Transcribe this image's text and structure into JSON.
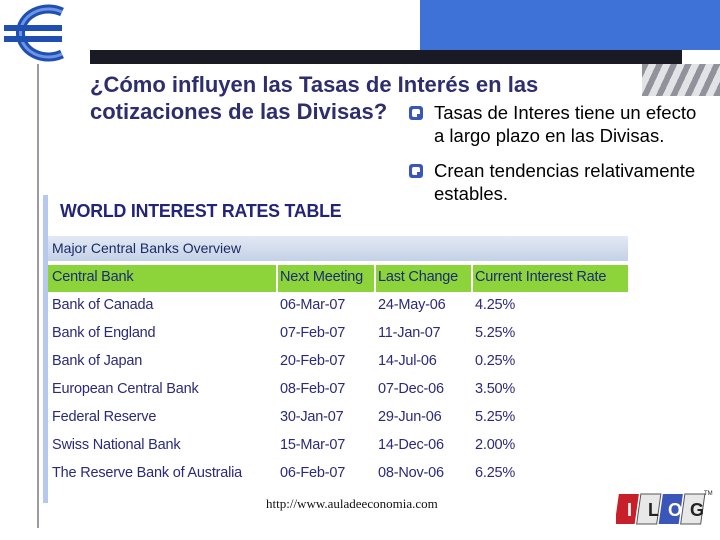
{
  "slide": {
    "title_line1": "¿Cómo influyen las Tasas de Interés en las",
    "title_line2": "cotizaciones de las Divisas?",
    "bullets": [
      {
        "text": "Tasas de Interes tiene un efecto a largo plazo en las Divisas."
      },
      {
        "text": "Crean tendencias relativamente estables."
      }
    ],
    "source_url": "http://www.auladeeconomia.com"
  },
  "table": {
    "heading": "WORLD INTEREST RATES TABLE",
    "overview_label": "Major Central Banks Overview",
    "columns": [
      "Central Bank",
      "Next Meeting",
      "Last Change",
      "Current Interest Rate"
    ],
    "rows": [
      [
        "Bank of Canada",
        "06-Mar-07",
        "24-May-06",
        "4.25%"
      ],
      [
        "Bank of England",
        "07-Feb-07",
        "11-Jan-07",
        "5.25%"
      ],
      [
        "Bank of Japan",
        "20-Feb-07",
        "14-Jul-06",
        "0.25%"
      ],
      [
        "European Central Bank",
        "08-Feb-07",
        "07-Dec-06",
        "3.50%"
      ],
      [
        "Federal Reserve",
        "30-Jan-07",
        "29-Jun-06",
        "5.25%"
      ],
      [
        "Swiss National Bank",
        "15-Mar-07",
        "14-Dec-06",
        "2.00%"
      ],
      [
        "The Reserve Bank of Australia",
        "06-Feb-07",
        "08-Nov-06",
        "6.25%"
      ]
    ]
  },
  "logos": {
    "ilog": [
      "I",
      "L",
      "O",
      "G"
    ],
    "trademark": "TM"
  },
  "colors": {
    "title": "#2e2e6e",
    "header_green": "#8cd43a",
    "accent_blue": "#3f72d6",
    "table_text": "#2a2a7a"
  }
}
